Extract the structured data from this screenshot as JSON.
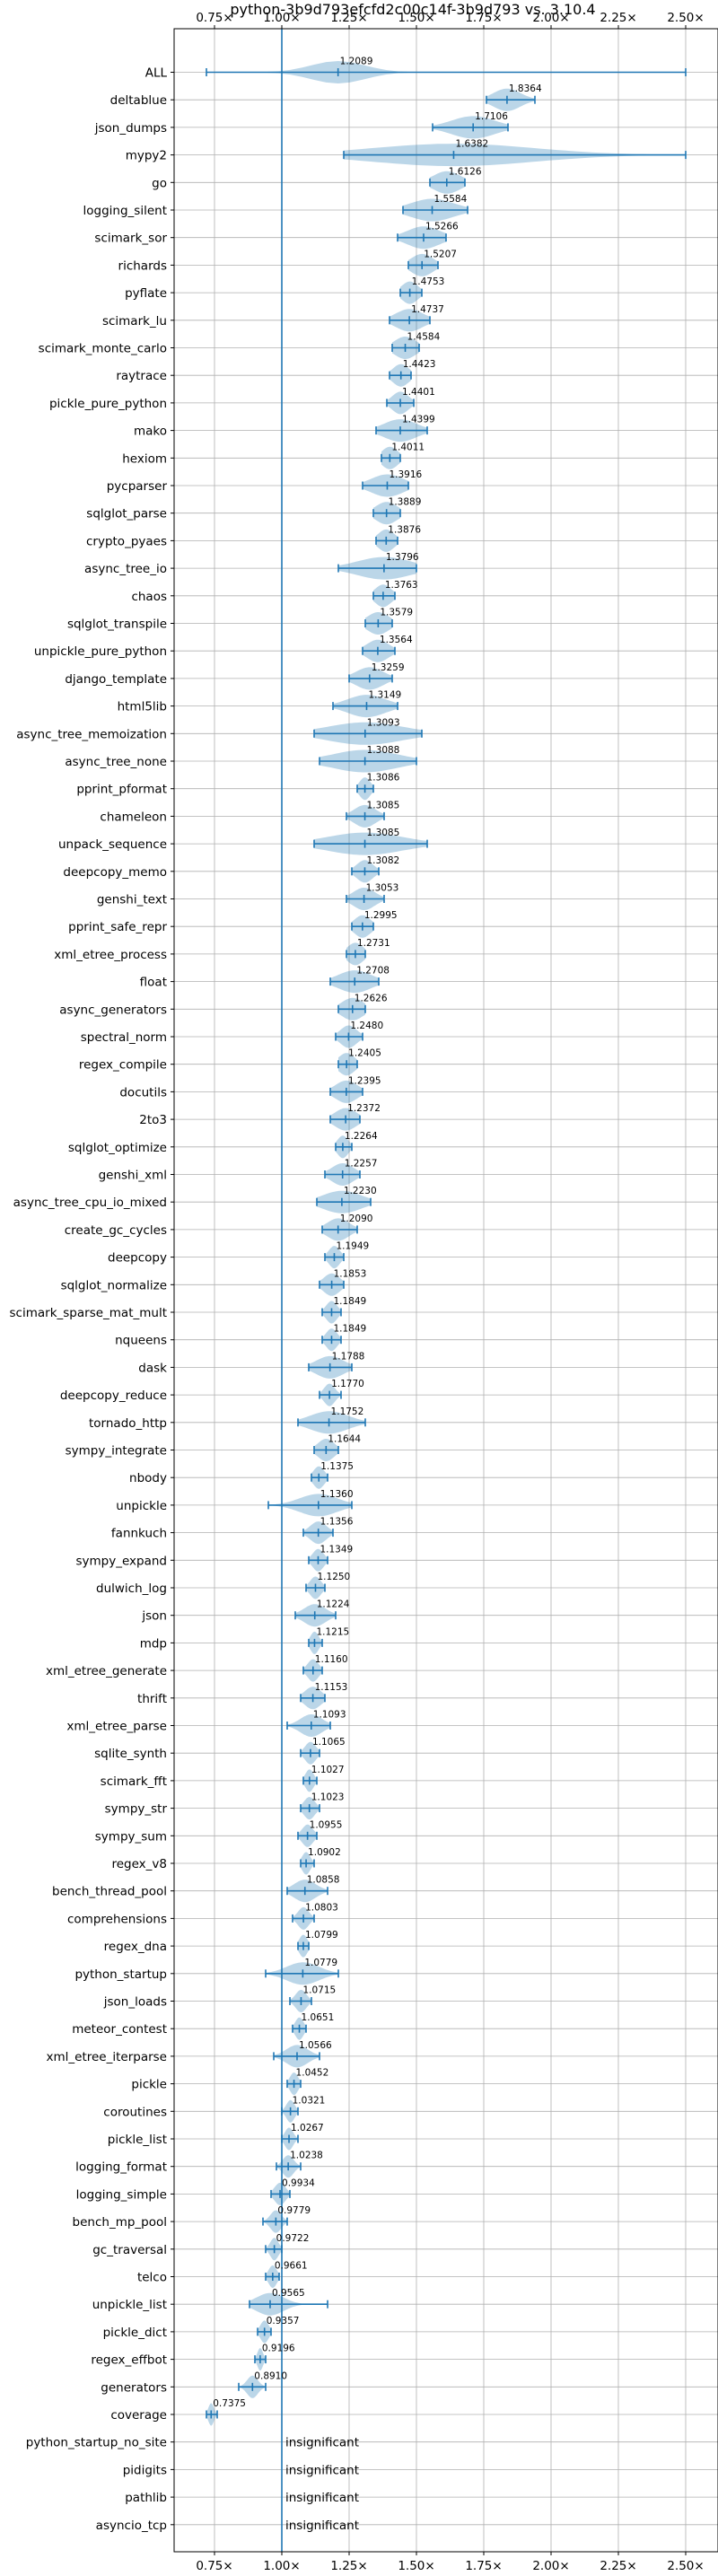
{
  "chart_data": {
    "type": "violin",
    "title": "python-3b9d793efcfd2c00c14f-3b9d793 vs. 3.10.4",
    "xlabel": "",
    "ylabel": "",
    "xlim": [
      0.6,
      2.62
    ],
    "x_ticks": [
      0.75,
      1.0,
      1.25,
      1.5,
      1.75,
      2.0,
      2.25,
      2.5
    ],
    "x_tick_labels": [
      "0.75×",
      "1.00×",
      "1.25×",
      "1.50×",
      "1.75×",
      "2.00×",
      "2.25×",
      "2.50×"
    ],
    "reference_x": 1.0,
    "grid": true,
    "insignificant_label": "insignificant",
    "colors": {
      "violin": "#1f77b4",
      "reference": "#1f77b4",
      "grid": "#b0b0b0"
    },
    "benchmarks": [
      {
        "name": "ALL",
        "label": "1.2089",
        "mean": 1.2089,
        "min": 0.72,
        "max": 2.5,
        "spread": 0.1
      },
      {
        "name": "deltablue",
        "label": "1.8364",
        "mean": 1.8364,
        "min": 1.76,
        "max": 1.94,
        "spread": 0.05
      },
      {
        "name": "json_dumps",
        "label": "1.7106",
        "mean": 1.7106,
        "min": 1.56,
        "max": 1.84,
        "spread": 0.08
      },
      {
        "name": "mypy2",
        "label": "1.6382",
        "mean": 1.6382,
        "min": 1.23,
        "max": 2.5,
        "spread": 0.3
      },
      {
        "name": "go",
        "label": "1.6126",
        "mean": 1.6126,
        "min": 1.55,
        "max": 1.68,
        "spread": 0.05
      },
      {
        "name": "logging_silent",
        "label": "1.5584",
        "mean": 1.5584,
        "min": 1.45,
        "max": 1.69,
        "spread": 0.08
      },
      {
        "name": "scimark_sor",
        "label": "1.5266",
        "mean": 1.5266,
        "min": 1.43,
        "max": 1.61,
        "spread": 0.06
      },
      {
        "name": "richards",
        "label": "1.5207",
        "mean": 1.5207,
        "min": 1.47,
        "max": 1.58,
        "spread": 0.04
      },
      {
        "name": "pyflate",
        "label": "1.4753",
        "mean": 1.4753,
        "min": 1.44,
        "max": 1.52,
        "spread": 0.03
      },
      {
        "name": "scimark_lu",
        "label": "1.4737",
        "mean": 1.4737,
        "min": 1.4,
        "max": 1.55,
        "spread": 0.05
      },
      {
        "name": "scimark_monte_carlo",
        "label": "1.4584",
        "mean": 1.4584,
        "min": 1.41,
        "max": 1.51,
        "spread": 0.04
      },
      {
        "name": "raytrace",
        "label": "1.4423",
        "mean": 1.4423,
        "min": 1.4,
        "max": 1.48,
        "spread": 0.03
      },
      {
        "name": "pickle_pure_python",
        "label": "1.4401",
        "mean": 1.4401,
        "min": 1.39,
        "max": 1.49,
        "spread": 0.03
      },
      {
        "name": "mako",
        "label": "1.4399",
        "mean": 1.4399,
        "min": 1.35,
        "max": 1.54,
        "spread": 0.06
      },
      {
        "name": "hexiom",
        "label": "1.4011",
        "mean": 1.4011,
        "min": 1.37,
        "max": 1.44,
        "spread": 0.03
      },
      {
        "name": "pycparser",
        "label": "1.3916",
        "mean": 1.3916,
        "min": 1.3,
        "max": 1.47,
        "spread": 0.06
      },
      {
        "name": "sqlglot_parse",
        "label": "1.3889",
        "mean": 1.3889,
        "min": 1.34,
        "max": 1.44,
        "spread": 0.04
      },
      {
        "name": "crypto_pyaes",
        "label": "1.3876",
        "mean": 1.3876,
        "min": 1.35,
        "max": 1.43,
        "spread": 0.03
      },
      {
        "name": "async_tree_io",
        "label": "1.3796",
        "mean": 1.3796,
        "min": 1.21,
        "max": 1.5,
        "spread": 0.1
      },
      {
        "name": "chaos",
        "label": "1.3763",
        "mean": 1.3763,
        "min": 1.34,
        "max": 1.42,
        "spread": 0.03
      },
      {
        "name": "sqlglot_transpile",
        "label": "1.3579",
        "mean": 1.3579,
        "min": 1.31,
        "max": 1.41,
        "spread": 0.04
      },
      {
        "name": "unpickle_pure_python",
        "label": "1.3564",
        "mean": 1.3564,
        "min": 1.3,
        "max": 1.42,
        "spread": 0.04
      },
      {
        "name": "django_template",
        "label": "1.3259",
        "mean": 1.3259,
        "min": 1.25,
        "max": 1.41,
        "spread": 0.05
      },
      {
        "name": "html5lib",
        "label": "1.3149",
        "mean": 1.3149,
        "min": 1.19,
        "max": 1.43,
        "spread": 0.07
      },
      {
        "name": "async_tree_memoization",
        "label": "1.3093",
        "mean": 1.3093,
        "min": 1.12,
        "max": 1.52,
        "spread": 0.14
      },
      {
        "name": "async_tree_none",
        "label": "1.3088",
        "mean": 1.3088,
        "min": 1.14,
        "max": 1.5,
        "spread": 0.12
      },
      {
        "name": "pprint_pformat",
        "label": "1.3086",
        "mean": 1.3086,
        "min": 1.28,
        "max": 1.34,
        "spread": 0.02
      },
      {
        "name": "chameleon",
        "label": "1.3085",
        "mean": 1.3085,
        "min": 1.24,
        "max": 1.38,
        "spread": 0.04
      },
      {
        "name": "unpack_sequence",
        "label": "1.3085",
        "mean": 1.3085,
        "min": 1.12,
        "max": 1.54,
        "spread": 0.14
      },
      {
        "name": "deepcopy_memo",
        "label": "1.3082",
        "mean": 1.3082,
        "min": 1.26,
        "max": 1.36,
        "spread": 0.03
      },
      {
        "name": "genshi_text",
        "label": "1.3053",
        "mean": 1.3053,
        "min": 1.24,
        "max": 1.38,
        "spread": 0.04
      },
      {
        "name": "pprint_safe_repr",
        "label": "1.2995",
        "mean": 1.2995,
        "min": 1.26,
        "max": 1.34,
        "spread": 0.03
      },
      {
        "name": "xml_etree_process",
        "label": "1.2731",
        "mean": 1.2731,
        "min": 1.24,
        "max": 1.31,
        "spread": 0.03
      },
      {
        "name": "float",
        "label": "1.2708",
        "mean": 1.2708,
        "min": 1.18,
        "max": 1.36,
        "spread": 0.06
      },
      {
        "name": "async_generators",
        "label": "1.2626",
        "mean": 1.2626,
        "min": 1.21,
        "max": 1.31,
        "spread": 0.04
      },
      {
        "name": "spectral_norm",
        "label": "1.2480",
        "mean": 1.248,
        "min": 1.2,
        "max": 1.3,
        "spread": 0.03
      },
      {
        "name": "regex_compile",
        "label": "1.2405",
        "mean": 1.2405,
        "min": 1.21,
        "max": 1.28,
        "spread": 0.03
      },
      {
        "name": "docutils",
        "label": "1.2395",
        "mean": 1.2395,
        "min": 1.18,
        "max": 1.3,
        "spread": 0.04
      },
      {
        "name": "2to3",
        "label": "1.2372",
        "mean": 1.2372,
        "min": 1.18,
        "max": 1.29,
        "spread": 0.04
      },
      {
        "name": "sqlglot_optimize",
        "label": "1.2264",
        "mean": 1.2264,
        "min": 1.2,
        "max": 1.26,
        "spread": 0.02
      },
      {
        "name": "genshi_xml",
        "label": "1.2257",
        "mean": 1.2257,
        "min": 1.16,
        "max": 1.29,
        "spread": 0.04
      },
      {
        "name": "async_tree_cpu_io_mixed",
        "label": "1.2230",
        "mean": 1.223,
        "min": 1.13,
        "max": 1.33,
        "spread": 0.07
      },
      {
        "name": "create_gc_cycles",
        "label": "1.2090",
        "mean": 1.209,
        "min": 1.15,
        "max": 1.28,
        "spread": 0.04
      },
      {
        "name": "deepcopy",
        "label": "1.1949",
        "mean": 1.1949,
        "min": 1.16,
        "max": 1.23,
        "spread": 0.02
      },
      {
        "name": "sqlglot_normalize",
        "label": "1.1853",
        "mean": 1.1853,
        "min": 1.14,
        "max": 1.23,
        "spread": 0.03
      },
      {
        "name": "scimark_sparse_mat_mult",
        "label": "1.1849",
        "mean": 1.1849,
        "min": 1.15,
        "max": 1.22,
        "spread": 0.02
      },
      {
        "name": "nqueens",
        "label": "1.1849",
        "mean": 1.1849,
        "min": 1.15,
        "max": 1.22,
        "spread": 0.02
      },
      {
        "name": "dask",
        "label": "1.1788",
        "mean": 1.1788,
        "min": 1.1,
        "max": 1.26,
        "spread": 0.05
      },
      {
        "name": "deepcopy_reduce",
        "label": "1.1770",
        "mean": 1.177,
        "min": 1.14,
        "max": 1.22,
        "spread": 0.02
      },
      {
        "name": "tornado_http",
        "label": "1.1752",
        "mean": 1.1752,
        "min": 1.06,
        "max": 1.31,
        "spread": 0.07
      },
      {
        "name": "sympy_integrate",
        "label": "1.1644",
        "mean": 1.1644,
        "min": 1.12,
        "max": 1.21,
        "spread": 0.03
      },
      {
        "name": "nbody",
        "label": "1.1375",
        "mean": 1.1375,
        "min": 1.11,
        "max": 1.17,
        "spread": 0.02
      },
      {
        "name": "unpickle",
        "label": "1.1360",
        "mean": 1.136,
        "min": 0.95,
        "max": 1.26,
        "spread": 0.07
      },
      {
        "name": "fannkuch",
        "label": "1.1356",
        "mean": 1.1356,
        "min": 1.08,
        "max": 1.19,
        "spread": 0.03
      },
      {
        "name": "sympy_expand",
        "label": "1.1349",
        "mean": 1.1349,
        "min": 1.1,
        "max": 1.17,
        "spread": 0.02
      },
      {
        "name": "dulwich_log",
        "label": "1.1250",
        "mean": 1.125,
        "min": 1.09,
        "max": 1.16,
        "spread": 0.02
      },
      {
        "name": "json",
        "label": "1.1224",
        "mean": 1.1224,
        "min": 1.05,
        "max": 1.2,
        "spread": 0.04
      },
      {
        "name": "mdp",
        "label": "1.1215",
        "mean": 1.1215,
        "min": 1.1,
        "max": 1.15,
        "spread": 0.015
      },
      {
        "name": "xml_etree_generate",
        "label": "1.1160",
        "mean": 1.116,
        "min": 1.08,
        "max": 1.15,
        "spread": 0.02
      },
      {
        "name": "thrift",
        "label": "1.1153",
        "mean": 1.1153,
        "min": 1.07,
        "max": 1.16,
        "spread": 0.03
      },
      {
        "name": "xml_etree_parse",
        "label": "1.1093",
        "mean": 1.1093,
        "min": 1.02,
        "max": 1.18,
        "spread": 0.04
      },
      {
        "name": "sqlite_synth",
        "label": "1.1065",
        "mean": 1.1065,
        "min": 1.07,
        "max": 1.14,
        "spread": 0.02
      },
      {
        "name": "scimark_fft",
        "label": "1.1027",
        "mean": 1.1027,
        "min": 1.08,
        "max": 1.13,
        "spread": 0.015
      },
      {
        "name": "sympy_str",
        "label": "1.1023",
        "mean": 1.1023,
        "min": 1.07,
        "max": 1.14,
        "spread": 0.02
      },
      {
        "name": "sympy_sum",
        "label": "1.0955",
        "mean": 1.0955,
        "min": 1.06,
        "max": 1.13,
        "spread": 0.02
      },
      {
        "name": "regex_v8",
        "label": "1.0902",
        "mean": 1.0902,
        "min": 1.07,
        "max": 1.12,
        "spread": 0.015
      },
      {
        "name": "bench_thread_pool",
        "label": "1.0858",
        "mean": 1.0858,
        "min": 1.02,
        "max": 1.17,
        "spread": 0.04
      },
      {
        "name": "comprehensions",
        "label": "1.0803",
        "mean": 1.0803,
        "min": 1.04,
        "max": 1.12,
        "spread": 0.02
      },
      {
        "name": "regex_dna",
        "label": "1.0799",
        "mean": 1.0799,
        "min": 1.06,
        "max": 1.1,
        "spread": 0.015
      },
      {
        "name": "python_startup",
        "label": "1.0779",
        "mean": 1.0779,
        "min": 0.94,
        "max": 1.21,
        "spread": 0.06
      },
      {
        "name": "json_loads",
        "label": "1.0715",
        "mean": 1.0715,
        "min": 1.03,
        "max": 1.11,
        "spread": 0.02
      },
      {
        "name": "meteor_contest",
        "label": "1.0651",
        "mean": 1.0651,
        "min": 1.04,
        "max": 1.09,
        "spread": 0.015
      },
      {
        "name": "xml_etree_iterparse",
        "label": "1.0566",
        "mean": 1.0566,
        "min": 0.97,
        "max": 1.14,
        "spread": 0.04
      },
      {
        "name": "pickle",
        "label": "1.0452",
        "mean": 1.0452,
        "min": 1.02,
        "max": 1.07,
        "spread": 0.015
      },
      {
        "name": "coroutines",
        "label": "1.0321",
        "mean": 1.0321,
        "min": 1.0,
        "max": 1.06,
        "spread": 0.015
      },
      {
        "name": "pickle_list",
        "label": "1.0267",
        "mean": 1.0267,
        "min": 1.0,
        "max": 1.06,
        "spread": 0.015
      },
      {
        "name": "logging_format",
        "label": "1.0238",
        "mean": 1.0238,
        "min": 0.98,
        "max": 1.07,
        "spread": 0.02
      },
      {
        "name": "logging_simple",
        "label": "0.9934",
        "mean": 0.9934,
        "min": 0.96,
        "max": 1.03,
        "spread": 0.02
      },
      {
        "name": "bench_mp_pool",
        "label": "0.9779",
        "mean": 0.9779,
        "min": 0.93,
        "max": 1.02,
        "spread": 0.02
      },
      {
        "name": "gc_traversal",
        "label": "0.9722",
        "mean": 0.9722,
        "min": 0.94,
        "max": 1.0,
        "spread": 0.015
      },
      {
        "name": "telco",
        "label": "0.9661",
        "mean": 0.9661,
        "min": 0.94,
        "max": 0.99,
        "spread": 0.015
      },
      {
        "name": "unpickle_list",
        "label": "0.9565",
        "mean": 0.9565,
        "min": 0.88,
        "max": 1.17,
        "spread": 0.05
      },
      {
        "name": "pickle_dict",
        "label": "0.9357",
        "mean": 0.9357,
        "min": 0.91,
        "max": 0.96,
        "spread": 0.015
      },
      {
        "name": "regex_effbot",
        "label": "0.9196",
        "mean": 0.9196,
        "min": 0.9,
        "max": 0.94,
        "spread": 0.01
      },
      {
        "name": "generators",
        "label": "0.8910",
        "mean": 0.891,
        "min": 0.84,
        "max": 0.94,
        "spread": 0.02
      },
      {
        "name": "coverage",
        "label": "0.7375",
        "mean": 0.7375,
        "min": 0.72,
        "max": 0.76,
        "spread": 0.01
      },
      {
        "name": "python_startup_no_site",
        "label": "",
        "insignificant": true
      },
      {
        "name": "pidigits",
        "label": "",
        "insignificant": true
      },
      {
        "name": "pathlib",
        "label": "",
        "insignificant": true
      },
      {
        "name": "asyncio_tcp",
        "label": "",
        "insignificant": true
      }
    ]
  }
}
